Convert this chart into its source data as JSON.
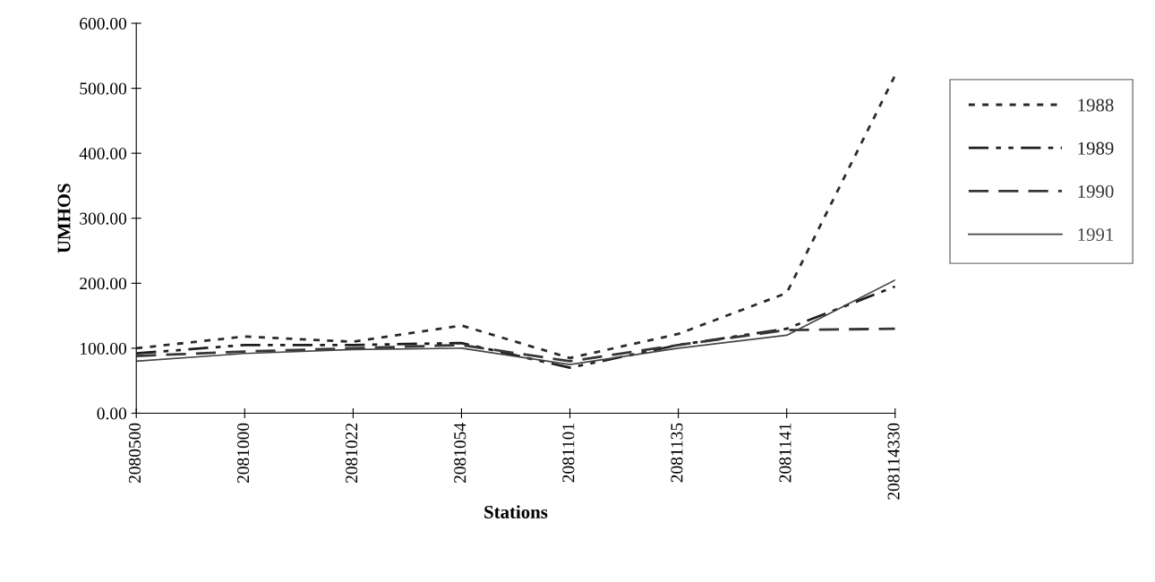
{
  "chart_data": {
    "type": "line",
    "xlabel": "Stations",
    "ylabel": "UMHOS",
    "categories": [
      "2080500",
      "2081000",
      "2081022",
      "2081054",
      "2081101",
      "2081135",
      "2081141",
      "208114330"
    ],
    "series": [
      {
        "name": "1988",
        "color": "#2a2a2a",
        "line_style": "dotted",
        "values": [
          100,
          118,
          110,
          135,
          85,
          122,
          185,
          520
        ]
      },
      {
        "name": "1989",
        "color": "#1e1e1e",
        "line_style": "dashdot",
        "values": [
          92,
          105,
          105,
          108,
          70,
          105,
          130,
          195
        ]
      },
      {
        "name": "1990",
        "color": "#363636",
        "line_style": "dashed",
        "values": [
          88,
          95,
          100,
          105,
          80,
          105,
          128,
          130
        ]
      },
      {
        "name": "1991",
        "color": "#444444",
        "line_style": "solid",
        "values": [
          80,
          92,
          98,
          100,
          75,
          100,
          120,
          205
        ]
      }
    ],
    "ylim": [
      0,
      600
    ],
    "yticks": [
      {
        "value": 0,
        "label": "0.00"
      },
      {
        "value": 100,
        "label": "100.00"
      },
      {
        "value": 200,
        "label": "200.00"
      },
      {
        "value": 300,
        "label": "300.00"
      },
      {
        "value": 400,
        "label": "400.00"
      },
      {
        "value": 500,
        "label": "500.00"
      },
      {
        "value": 600,
        "label": "600.00"
      }
    ],
    "grid": false,
    "legend": "right",
    "marker": "none"
  }
}
